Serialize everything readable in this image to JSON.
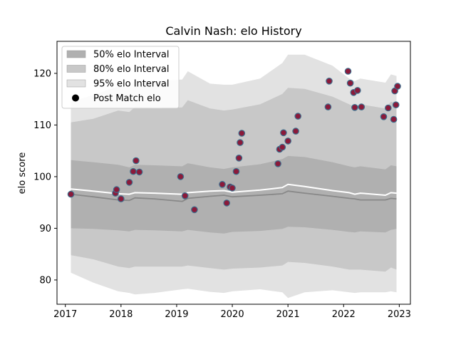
{
  "chart_data": {
    "type": "scatter",
    "title": "Calvin Nash: elo History",
    "xlabel": "",
    "ylabel": "elo score",
    "xlim": [
      2016.85,
      2023.2
    ],
    "ylim": [
      75.3,
      126.2
    ],
    "x_ticks": [
      2017,
      2018,
      2019,
      2020,
      2021,
      2022,
      2023
    ],
    "x_tick_labels": [
      "2017",
      "2018",
      "2019",
      "2020",
      "2021",
      "2022",
      "2023"
    ],
    "y_ticks": [
      80,
      90,
      100,
      110,
      120
    ],
    "y_tick_labels": [
      "80",
      "90",
      "100",
      "110",
      "120"
    ],
    "grid": false,
    "legend_position": "upper-left",
    "colors": {
      "band50": "#b0b0b0",
      "band80": "#c8c8c8",
      "band95": "#e2e2e2",
      "median_line": "#888888",
      "mean_line": "#ffffff",
      "marker_fill": "#8b1a3a",
      "marker_edge": "#3d6e8c"
    },
    "legend": [
      {
        "label": "50% elo Interval",
        "kind": "band50"
      },
      {
        "label": "80% elo Interval",
        "kind": "band80"
      },
      {
        "label": "95% elo Interval",
        "kind": "band95"
      },
      {
        "label": "Post Match elo",
        "kind": "marker"
      }
    ],
    "bands": {
      "x": [
        2017.1,
        2017.5,
        2017.95,
        2018.15,
        2018.25,
        2018.6,
        2019.1,
        2019.2,
        2019.6,
        2019.85,
        2020.0,
        2020.5,
        2020.9,
        2021.0,
        2021.3,
        2021.8,
        2022.1,
        2022.2,
        2022.3,
        2022.75,
        2022.85,
        2022.95
      ],
      "p95_hi": [
        114.5,
        115.8,
        117.5,
        117.2,
        118.5,
        118.5,
        118.8,
        120.4,
        118.0,
        117.8,
        117.8,
        119.0,
        122.0,
        123.6,
        123.6,
        121.5,
        119.0,
        118.5,
        119.0,
        118.2,
        119.8,
        119.5
      ],
      "p80_hi": [
        110.5,
        111.2,
        112.8,
        112.5,
        113.5,
        113.3,
        113.4,
        114.8,
        113.2,
        112.8,
        113.0,
        114.0,
        116.0,
        117.2,
        117.0,
        115.5,
        114.0,
        113.5,
        114.0,
        113.2,
        114.5,
        114.2
      ],
      "p50_hi": [
        103.2,
        102.8,
        102.3,
        101.8,
        102.3,
        102.2,
        102.0,
        102.6,
        101.8,
        101.5,
        101.8,
        102.4,
        103.4,
        104.0,
        103.8,
        102.8,
        102.0,
        101.8,
        102.0,
        101.4,
        102.2,
        102.0
      ],
      "p50_lo": [
        90.0,
        89.9,
        89.6,
        89.4,
        89.7,
        89.6,
        89.4,
        89.7,
        89.2,
        89.0,
        89.3,
        89.5,
        89.9,
        90.3,
        90.2,
        89.7,
        89.3,
        89.2,
        89.4,
        89.2,
        89.7,
        89.9
      ],
      "p80_lo": [
        84.8,
        84.0,
        82.6,
        82.3,
        82.6,
        82.6,
        82.6,
        82.8,
        82.3,
        82.0,
        82.2,
        82.4,
        82.8,
        83.5,
        83.3,
        82.6,
        82.0,
        82.0,
        82.0,
        81.6,
        82.4,
        82.0
      ],
      "p95_lo": [
        81.4,
        79.5,
        77.8,
        77.5,
        77.2,
        77.5,
        78.2,
        78.3,
        77.7,
        77.5,
        77.8,
        78.2,
        77.6,
        76.5,
        77.6,
        78.0,
        77.6,
        77.5,
        77.6,
        77.6,
        77.8,
        77.6
      ]
    },
    "median_line": {
      "x": [
        2017.1,
        2017.5,
        2017.95,
        2018.15,
        2018.25,
        2018.6,
        2019.1,
        2019.2,
        2019.6,
        2019.85,
        2020.0,
        2020.5,
        2020.9,
        2021.0,
        2021.3,
        2021.8,
        2022.1,
        2022.2,
        2022.3,
        2022.75,
        2022.85,
        2022.95
      ],
      "y": [
        96.6,
        96.1,
        95.5,
        95.4,
        95.9,
        95.7,
        95.2,
        95.8,
        96.2,
        96.4,
        96.1,
        96.4,
        96.7,
        97.2,
        96.8,
        96.2,
        95.8,
        95.7,
        95.5,
        95.5,
        95.8,
        95.7
      ]
    },
    "mean_line": {
      "x": [
        2017.1,
        2017.5,
        2017.95,
        2018.15,
        2018.25,
        2018.6,
        2019.1,
        2019.2,
        2019.6,
        2019.85,
        2020.0,
        2020.5,
        2020.9,
        2021.0,
        2021.3,
        2021.8,
        2022.1,
        2022.2,
        2022.3,
        2022.75,
        2022.85,
        2022.95
      ],
      "y": [
        97.6,
        97.2,
        96.7,
        96.6,
        96.9,
        96.8,
        96.6,
        96.9,
        97.2,
        97.3,
        97.0,
        97.4,
        97.9,
        98.5,
        98.1,
        97.3,
        96.9,
        96.6,
        96.8,
        96.4,
        96.9,
        96.8
      ]
    },
    "points": {
      "x": [
        2017.1,
        2017.9,
        2017.92,
        2018.0,
        2018.15,
        2018.22,
        2018.27,
        2018.33,
        2019.07,
        2019.15,
        2019.32,
        2019.82,
        2019.9,
        2019.96,
        2020.0,
        2020.07,
        2020.12,
        2020.14,
        2020.17,
        2020.82,
        2020.85,
        2020.9,
        2020.92,
        2021.0,
        2021.14,
        2021.18,
        2021.72,
        2021.74,
        2022.08,
        2022.12,
        2022.18,
        2022.2,
        2022.25,
        2022.32,
        2022.72,
        2022.8,
        2022.9,
        2022.92,
        2022.94,
        2022.97
      ],
      "y": [
        96.6,
        96.8,
        97.5,
        95.7,
        98.9,
        101.0,
        103.1,
        100.9,
        100.0,
        96.3,
        93.6,
        98.5,
        94.9,
        98.0,
        97.8,
        101.0,
        103.6,
        106.6,
        108.4,
        102.5,
        105.3,
        105.7,
        108.5,
        106.9,
        108.8,
        111.7,
        113.5,
        118.5,
        120.4,
        118.1,
        116.3,
        113.4,
        116.7,
        113.5,
        111.6,
        113.3,
        111.1,
        116.6,
        113.9,
        117.5
      ]
    }
  }
}
